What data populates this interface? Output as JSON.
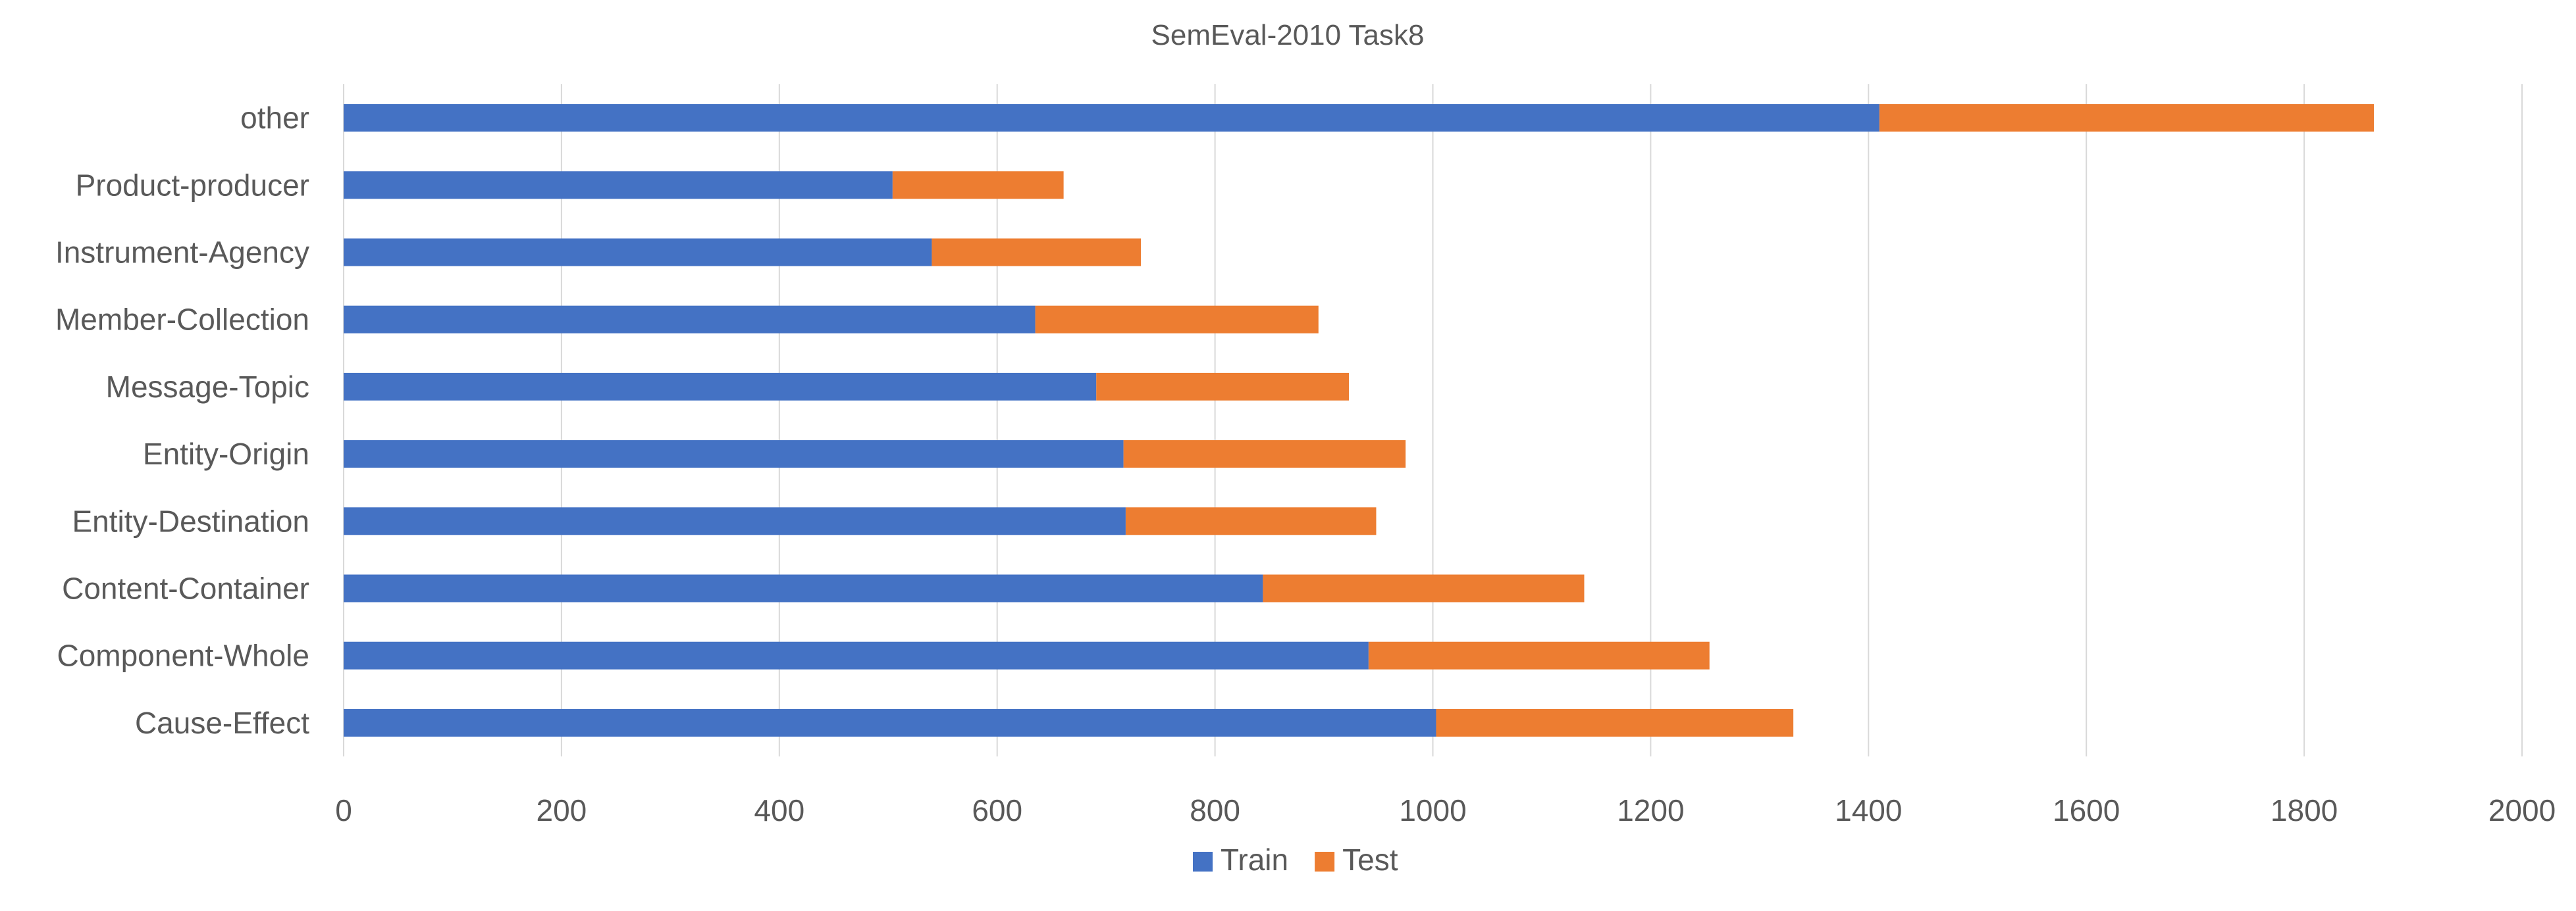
{
  "chart_data": {
    "type": "bar",
    "orientation": "horizontal",
    "stacked": true,
    "title": "SemEval-2010 Task8",
    "xlabel": "",
    "ylabel": "",
    "categories": [
      "other",
      "Product-producer",
      "Instrument-Agency",
      "Member-Collection",
      "Message-Topic",
      "Entity-Origin",
      "Entity-Destination",
      "Content-Container",
      "Component-Whole",
      "Cause-Effect"
    ],
    "series": [
      {
        "name": "Train",
        "color": "#4472c4",
        "values": [
          1410,
          504,
          540,
          635,
          691,
          716,
          718,
          844,
          941,
          1003
        ]
      },
      {
        "name": "Test",
        "color": "#ed7d31",
        "values": [
          454,
          157,
          192,
          260,
          232,
          259,
          230,
          295,
          313,
          328
        ]
      }
    ],
    "xlim": [
      0,
      2000
    ],
    "xticks": [
      "0",
      "200",
      "400",
      "600",
      "800",
      "1000",
      "1200",
      "1400",
      "1600",
      "1800",
      "2000"
    ],
    "grid": "vertical",
    "legend_position": "bottom"
  }
}
